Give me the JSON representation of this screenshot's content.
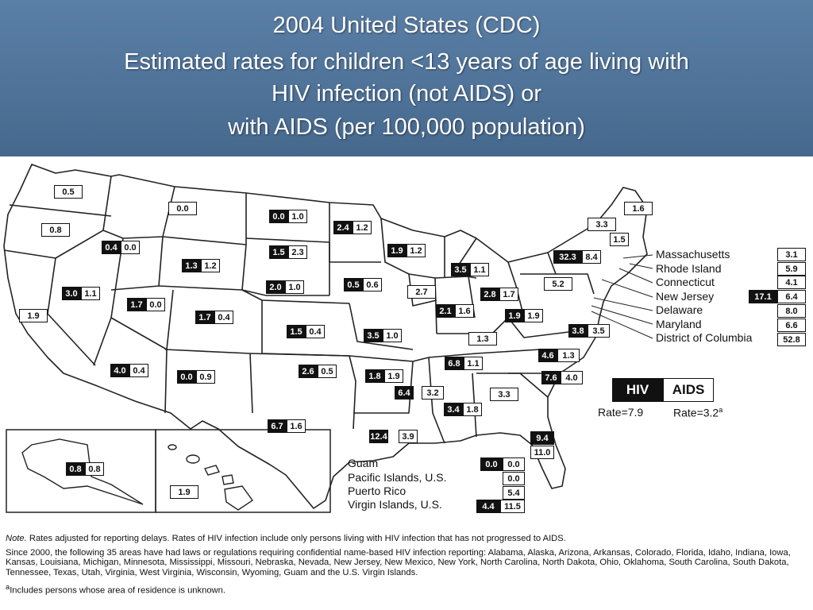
{
  "header": {
    "line1": "2004 United States (CDC)",
    "line2": "Estimated rates for children <13 years of age living with",
    "line3": "HIV infection (not AIDS) or",
    "line4": "with AIDS (per 100,000 population)"
  },
  "states": {
    "WA": {
      "aids": "0.5"
    },
    "OR": {
      "aids": "0.8"
    },
    "CA": {
      "aids": "1.9"
    },
    "NV": {
      "hiv": "3.0",
      "aids": "1.1"
    },
    "ID": {
      "hiv": "0.4",
      "aids": "0.0"
    },
    "MT": {
      "aids": "0.0"
    },
    "WY": {
      "hiv": "1.3",
      "aids": "1.2"
    },
    "UT": {
      "hiv": "1.7",
      "aids": "0.0"
    },
    "CO": {
      "hiv": "1.7",
      "aids": "0.4"
    },
    "AZ": {
      "hiv": "4.0",
      "aids": "0.4"
    },
    "NM": {
      "hiv": "0.0",
      "aids": "0.9"
    },
    "ND": {
      "hiv": "0.0",
      "aids": "1.0"
    },
    "SD": {
      "hiv": "1.5",
      "aids": "2.3"
    },
    "NE": {
      "hiv": "2.0",
      "aids": "1.0"
    },
    "KS": {
      "hiv": "1.5",
      "aids": "0.4"
    },
    "OK": {
      "hiv": "2.6",
      "aids": "0.5"
    },
    "TX": {
      "hiv": "6.7",
      "aids": "1.6"
    },
    "MN": {
      "hiv": "2.4",
      "aids": "1.2"
    },
    "IA": {
      "hiv": "0.5",
      "aids": "0.6"
    },
    "MO": {
      "hiv": "3.5",
      "aids": "1.0"
    },
    "AR": {
      "hiv": "1.8",
      "aids": "1.9"
    },
    "LA": {
      "hiv": "12.4",
      "aids": "3.9"
    },
    "WI": {
      "hiv": "1.9",
      "aids": "1.2"
    },
    "IL": {
      "aids": "2.7"
    },
    "MI": {
      "hiv": "3.5",
      "aids": "1.1"
    },
    "IN": {
      "hiv": "2.1",
      "aids": "1.6"
    },
    "OH": {
      "hiv": "2.8",
      "aids": "1.7"
    },
    "KY": {
      "aids": "1.3"
    },
    "TN": {
      "hiv": "6.8",
      "aids": "1.1"
    },
    "MS": {
      "hiv": "6.4",
      "aids": "3.2"
    },
    "AL": {
      "hiv": "3.4",
      "aids": "1.8"
    },
    "GA": {
      "aids": "3.3"
    },
    "FL": {
      "hiv": "9.4",
      "aids": "11.0"
    },
    "SC": {
      "hiv": "7.6",
      "aids": "4.0"
    },
    "NC": {
      "hiv": "4.6",
      "aids": "1.3"
    },
    "VA": {
      "hiv": "3.8",
      "aids": "3.5"
    },
    "WV": {
      "hiv": "1.9",
      "aids": "1.9"
    },
    "PA": {
      "aids": "5.2"
    },
    "NY": {
      "hiv": "32.3",
      "aids": "8.4"
    },
    "VT": {
      "aids": "3.3"
    },
    "NH": {
      "aids": "1.5"
    },
    "ME": {
      "aids": "1.6"
    },
    "AK": {
      "hiv": "0.8",
      "aids": "0.8"
    },
    "HI": {
      "aids": "1.9"
    }
  },
  "northeast": [
    {
      "label": "Massachusetts",
      "aids": "3.1"
    },
    {
      "label": "Rhode Island",
      "aids": "5.9"
    },
    {
      "label": "Connecticut",
      "aids": "4.1"
    },
    {
      "label": "New Jersey",
      "hiv": "17.1",
      "aids": "6.4"
    },
    {
      "label": "Delaware",
      "aids": "8.0"
    },
    {
      "label": "Maryland",
      "aids": "6.6"
    },
    {
      "label": "District of Columbia",
      "aids": "52.8"
    }
  ],
  "territories": [
    {
      "label": "Guam",
      "hiv": "0.0",
      "aids": "0.0"
    },
    {
      "label": "Pacific Islands, U.S.",
      "aids": "0.0"
    },
    {
      "label": "Puerto Rico",
      "aids": "5.4"
    },
    {
      "label": "Virgin Islands, U.S.",
      "hiv": "4.4",
      "aids": "11.5"
    }
  ],
  "legend": {
    "hiv_label": "HIV",
    "aids_label": "AIDS",
    "hiv_rate": "Rate=7.9",
    "aids_rate": "Rate=3.2",
    "aids_rate_mark": "a"
  },
  "notes": {
    "note_label": "Note.",
    "note1": " Rates adjusted for reporting delays.  Rates of HIV infection include only persons living with HIV infection that has not progressed to AIDS.",
    "note2": "Since 2000, the following 35 areas have had laws or regulations requiring confidential name-based HIV infection reporting: Alabama, Alaska, Arizona, Arkansas, Colorado, Florida, Idaho, Indiana, Iowa, Kansas, Louisiana, Michigan, Minnesota, Mississippi, Missouri, Nebraska, Nevada, New Jersey, New Mexico, New York, North Carolina, North Dakota, Ohio, Oklahoma, South Carolina, South Dakota, Tennessee, Texas, Utah, Virginia, West Virginia, Wisconsin, Wyoming, Guam and the U.S. Virgin Islands.",
    "footnote_mark": "a",
    "footnote": "Includes persons whose area of residence is unknown."
  },
  "colors": {
    "header_bg": "#4f7399",
    "hiv_box": "#111111",
    "aids_box": "#ffffff",
    "border": "#111111"
  }
}
